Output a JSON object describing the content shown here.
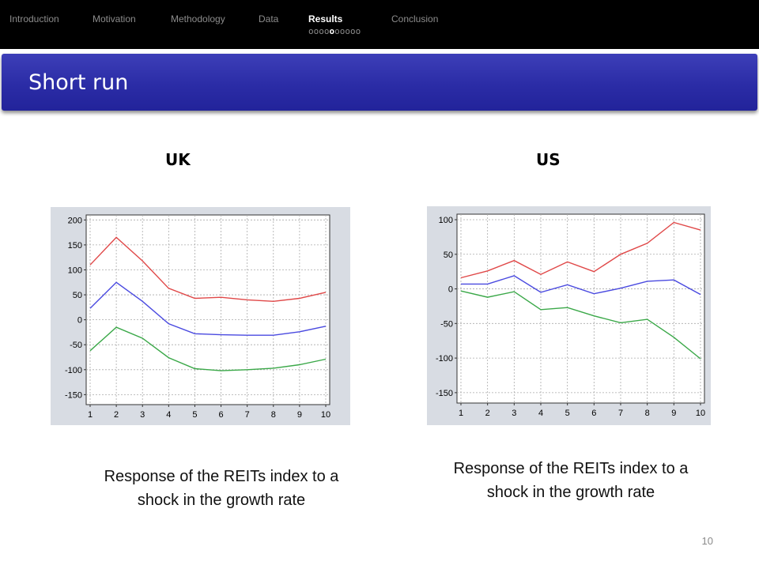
{
  "nav": {
    "items": [
      "Introduction",
      "Motivation",
      "Methodology",
      "Data",
      "Results",
      "Conclusion"
    ],
    "active": "Results",
    "dots_before": "oooo",
    "dot_current": "o",
    "dots_after": "ooooo"
  },
  "slide": {
    "title": "Short run",
    "page_number": "10"
  },
  "panels": {
    "left": {
      "heading": "UK",
      "caption_line1": "Response of the REITs index to a",
      "caption_line2": "shock in the growth rate"
    },
    "right": {
      "heading": "US",
      "caption_line1": "Response of  the REITs index to a",
      "caption_line2": "shock in the growth rate"
    }
  },
  "chart_data": [
    {
      "type": "line",
      "x": [
        1,
        2,
        3,
        4,
        5,
        6,
        7,
        8,
        9,
        10
      ],
      "yticks": [
        200,
        150,
        100,
        50,
        0,
        -50,
        -100,
        -150
      ],
      "ylim": [
        -170,
        210
      ],
      "grid": true,
      "series": [
        {
          "color": "#e04848",
          "values": [
            110,
            165,
            118,
            63,
            43,
            45,
            40,
            37,
            43,
            55
          ]
        },
        {
          "color": "#4a4ae0",
          "values": [
            23,
            75,
            37,
            -8,
            -28,
            -30,
            -31,
            -31,
            -24,
            -13
          ]
        },
        {
          "color": "#3aa848",
          "values": [
            -62,
            -15,
            -37,
            -76,
            -98,
            -102,
            -100,
            -97,
            -90,
            -79
          ]
        }
      ]
    },
    {
      "type": "line",
      "x": [
        1,
        2,
        3,
        4,
        5,
        6,
        7,
        8,
        9,
        10
      ],
      "yticks": [
        100,
        50,
        0,
        -50,
        -100,
        -150
      ],
      "ylim": [
        -165,
        108
      ],
      "grid": true,
      "series": [
        {
          "color": "#e04848",
          "values": [
            16,
            26,
            41,
            21,
            39,
            25,
            50,
            66,
            96,
            85
          ]
        },
        {
          "color": "#4a4ae0",
          "values": [
            7,
            7,
            19,
            -5,
            6,
            -7,
            1,
            11,
            13,
            -8
          ]
        },
        {
          "color": "#3aa848",
          "values": [
            -3,
            -12,
            -4,
            -30,
            -27,
            -39,
            -49,
            -44,
            -70,
            -101
          ]
        }
      ]
    }
  ]
}
